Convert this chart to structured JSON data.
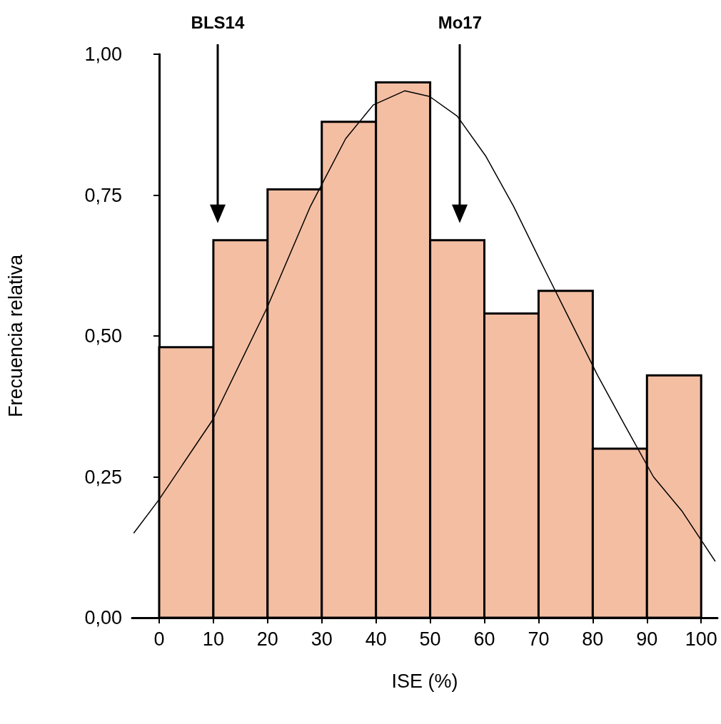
{
  "chart_data": {
    "type": "histogram",
    "xlabel": "ISE (%)",
    "ylabel": "Frecuencia relativa",
    "bins": [
      0,
      10,
      20,
      30,
      40,
      50,
      60,
      70,
      80,
      90,
      100
    ],
    "series": [
      {
        "color": "#f4bea3",
        "values": [
          0.48,
          0.67,
          0.76,
          0.88,
          0.95,
          0.67,
          0.54,
          0.58,
          0.3,
          0.43
        ]
      },
      {
        "type": "line",
        "color": "#000000",
        "x": [
          -4.7,
          0,
          9.8,
          19.9,
          27.9,
          34.4,
          39.5,
          45.3,
          49.9,
          55,
          60.2,
          65.4,
          70.5,
          75.7,
          80.9,
          86,
          91.2,
          96.4,
          102.6
        ],
        "values": [
          0.15,
          0.21,
          0.35,
          0.55,
          0.73,
          0.85,
          0.91,
          0.935,
          0.925,
          0.89,
          0.82,
          0.73,
          0.63,
          0.53,
          0.43,
          0.34,
          0.25,
          0.19,
          0.1
        ]
      }
    ],
    "marker": "none",
    "line_style": "solid",
    "grid": false,
    "xlim": [
      -5,
      103
    ],
    "xticks": [
      0,
      10,
      20,
      30,
      40,
      50,
      60,
      70,
      80,
      90,
      100
    ],
    "ylim": [
      0,
      1
    ],
    "yticks": [
      {
        "value": 0,
        "label": "0,00"
      },
      {
        "value": 0.25,
        "label": "0,25"
      },
      {
        "value": 0.5,
        "label": "0,50"
      },
      {
        "value": 0.75,
        "label": "0,75"
      },
      {
        "value": 1,
        "label": "1,00"
      }
    ],
    "ref_lines": [
      {
        "axis": "x",
        "value": 10.8,
        "label": "BLS14",
        "color": "#000000"
      },
      {
        "axis": "x",
        "value": 55.5,
        "label": "Mo17",
        "color": "#000000"
      }
    ]
  }
}
